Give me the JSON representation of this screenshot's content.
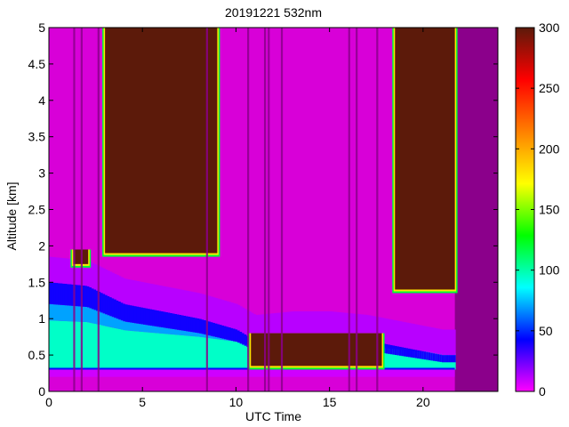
{
  "chart_data": {
    "type": "heatmap",
    "title": "20191221 532nm",
    "xlabel": "UTC Time",
    "ylabel": "Altitude [km]",
    "xlim": [
      0,
      24
    ],
    "ylim": [
      0,
      5
    ],
    "x_ticks": [
      "0",
      "5",
      "10",
      "15",
      "20"
    ],
    "x_tick_values": [
      0,
      5,
      10,
      15,
      20
    ],
    "y_ticks": [
      "0",
      "0.5",
      "1",
      "1.5",
      "2",
      "2.5",
      "3",
      "3.5",
      "4",
      "4.5",
      "5"
    ],
    "y_tick_values": [
      0,
      0.5,
      1,
      1.5,
      2,
      2.5,
      3,
      3.5,
      4,
      4.5,
      5
    ],
    "colorbar": {
      "range": [
        0,
        300
      ],
      "ticks": [
        "0",
        "50",
        "100",
        "150",
        "200",
        "250",
        "300"
      ],
      "tick_values": [
        0,
        50,
        100,
        150,
        200,
        250,
        300
      ],
      "colormap": [
        "#ff00ff",
        "#0000ff",
        "#00ffff",
        "#00ff00",
        "#ffff00",
        "#ff8000",
        "#ff0000",
        "#5c1a0a"
      ]
    },
    "features": {
      "data_end_hour": 21.7,
      "surface_layer_km": [
        0.2,
        0.3
      ],
      "boundary_layer_top_km": [
        [
          0,
          1.5
        ],
        [
          2,
          1.45
        ],
        [
          4,
          1.2
        ],
        [
          6,
          1.1
        ],
        [
          8,
          1.0
        ],
        [
          10,
          0.85
        ],
        [
          11,
          0.7
        ],
        [
          13,
          0.75
        ],
        [
          15,
          0.75
        ],
        [
          17,
          0.7
        ],
        [
          19,
          0.6
        ],
        [
          21,
          0.5
        ]
      ],
      "cloud_layers": [
        {
          "start_hour": 3.0,
          "end_hour": 9.0,
          "top_km": 5.0,
          "base_km": 1.9
        },
        {
          "start_hour": 18.5,
          "end_hour": 21.7,
          "top_km": 5.0,
          "base_km": 1.4
        },
        {
          "start_hour": 10.8,
          "end_hour": 17.8,
          "top_km": 0.8,
          "base_km": 0.35
        },
        {
          "start_hour": 1.3,
          "end_hour": 2.1,
          "top_km": 1.95,
          "base_km": 1.75
        }
      ],
      "data_gaps_hours": [
        1.3,
        1.7,
        2.6,
        8.4,
        10.6,
        11.5,
        11.7,
        12.4,
        16.0,
        16.4,
        17.5
      ]
    }
  },
  "colors": {
    "background_no_data": "#8b008b",
    "clear_air": "#d800d8"
  }
}
